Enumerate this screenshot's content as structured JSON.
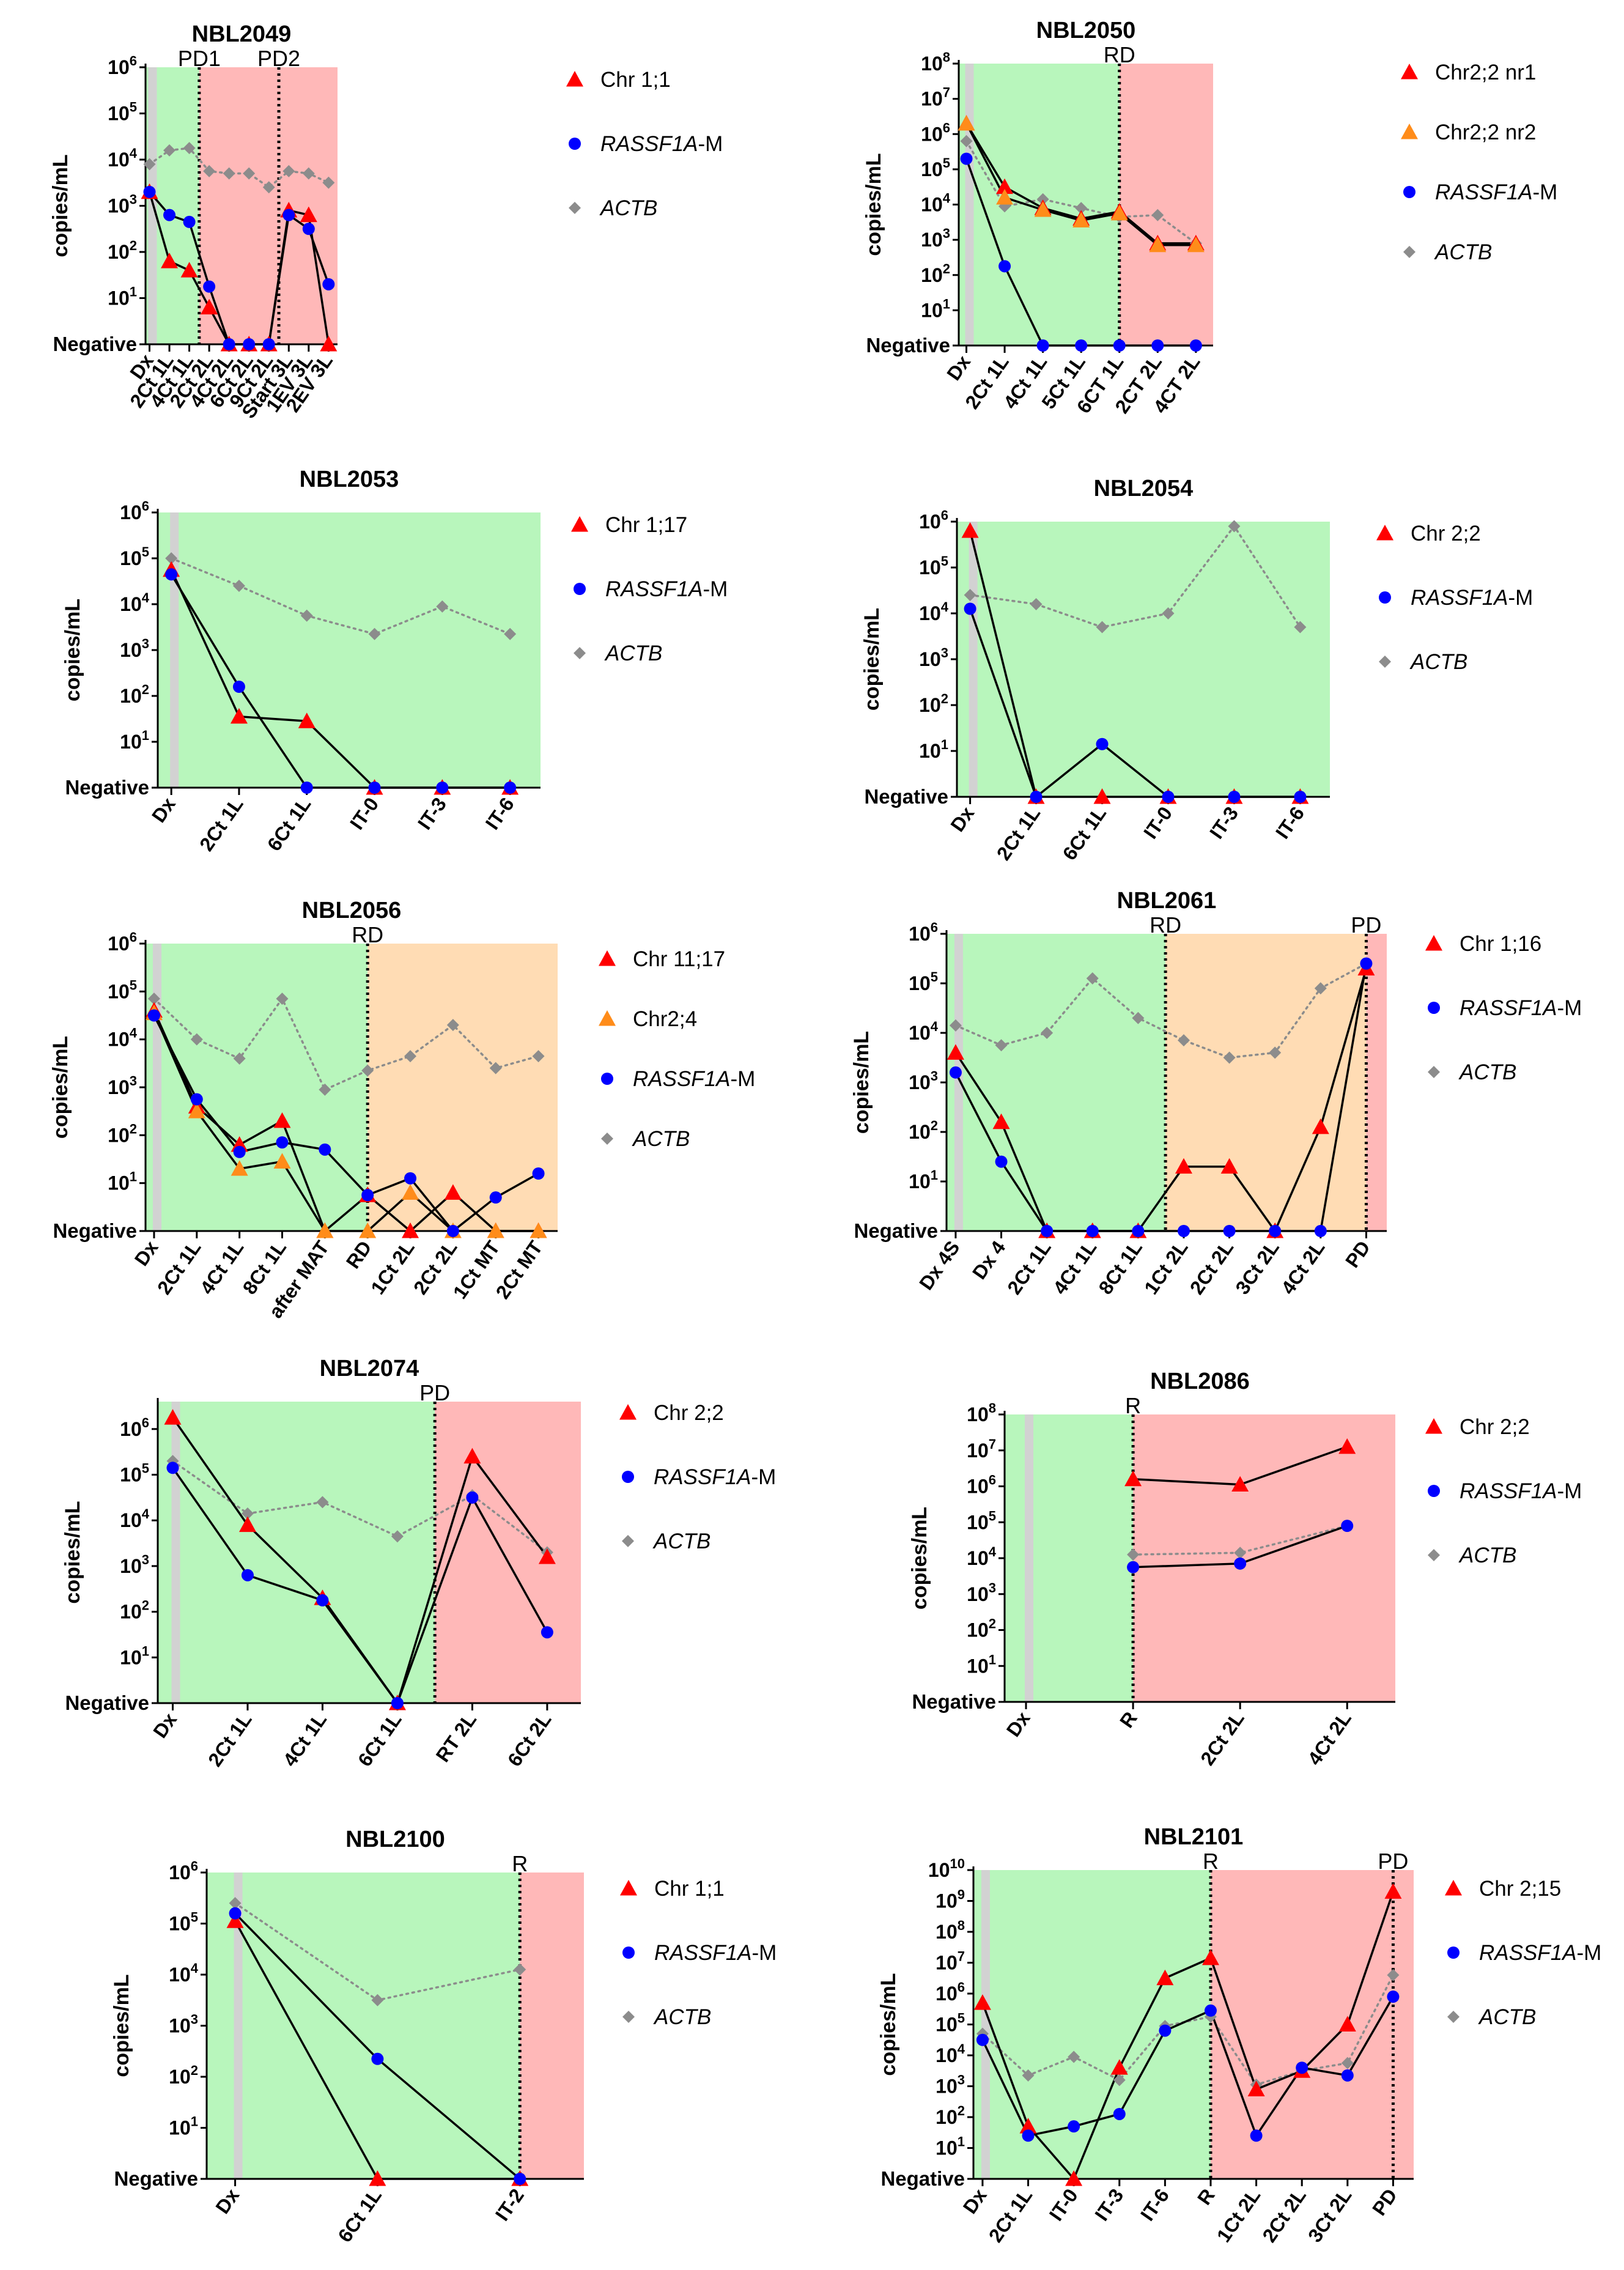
{
  "labels": {
    "negative": "Negative",
    "ylabel": "copies/mL"
  },
  "colors": {
    "green": "#b8f6bc",
    "red": "#ffb8b8",
    "orange": "#ffdcb4",
    "gray": "#d2d2d2",
    "red_series": "#ff0000",
    "orange_series": "#ff8c1a",
    "blue": "#0000ff",
    "actb": "#8c8c8c"
  },
  "chart_data": [
    {
      "type": "line",
      "title": "NBL2049",
      "xlabel": "",
      "ylabel": "copies/mL",
      "ylim_log10": [
        0,
        6
      ],
      "categories": [
        "Dx",
        "2Ct 1L",
        "4Ct 1L",
        "2Ct 2L",
        "4Ct 2L",
        "6Ct 2L",
        "9Ct 2L",
        "Start 3L",
        "1EV 3L",
        "2EV 3L"
      ],
      "shading": [
        {
          "from": -0.15,
          "to": 2.5,
          "color": "green"
        },
        {
          "from": 2.5,
          "to": 9.5,
          "color": "red"
        }
      ],
      "markers": [
        {
          "label": "PD1",
          "at": 2.5
        },
        {
          "label": "PD2",
          "at": 6.5
        }
      ],
      "series": [
        {
          "name": "Chr 1;1",
          "style": "red-triangle",
          "values_log10": [
            3.3,
            1.8,
            1.6,
            0.8,
            0,
            0,
            0,
            2.9,
            2.8,
            0
          ]
        },
        {
          "name": "RASSF1A-M",
          "style": "blue-circle",
          "values_log10": [
            3.3,
            2.8,
            2.65,
            1.25,
            0,
            0,
            0,
            2.8,
            2.5,
            1.3
          ]
        },
        {
          "name": "ACTB",
          "style": "gray-diamond",
          "values_log10": [
            3.9,
            4.2,
            4.25,
            3.75,
            3.7,
            3.7,
            3.4,
            3.75,
            3.7,
            3.5
          ]
        }
      ]
    },
    {
      "type": "line",
      "title": "NBL2050",
      "xlabel": "",
      "ylabel": "copies/mL",
      "ylim_log10": [
        0,
        8
      ],
      "categories": [
        "Dx",
        "2Ct 1L",
        "4Ct 1L",
        "5Ct 1L",
        "6CT 1L",
        "2CT 2L",
        "4CT 2L"
      ],
      "shading": [
        {
          "from": -0.15,
          "to": 4,
          "color": "green"
        },
        {
          "from": 4,
          "to": 6.5,
          "color": "red"
        }
      ],
      "markers": [
        {
          "label": "RD",
          "at": 4
        }
      ],
      "series": [
        {
          "name": "Chr2;2 nr1",
          "style": "red-triangle",
          "values_log10": [
            6.3,
            4.5,
            3.9,
            3.6,
            3.8,
            2.9,
            2.9
          ]
        },
        {
          "name": "Chr2;2 nr2",
          "style": "orange-triangle",
          "values_log10": [
            6.3,
            4.2,
            3.85,
            3.55,
            3.75,
            2.85,
            2.85
          ]
        },
        {
          "name": "RASSF1A-M",
          "style": "blue-circle",
          "values_log10": [
            5.3,
            2.25,
            0,
            0,
            0,
            0,
            0
          ]
        },
        {
          "name": "ACTB",
          "style": "gray-diamond",
          "values_log10": [
            5.8,
            3.95,
            4.15,
            3.9,
            3.65,
            3.7,
            2.9
          ]
        }
      ]
    },
    {
      "type": "line",
      "title": "NBL2053",
      "xlabel": "",
      "ylabel": "copies/mL",
      "ylim_log10": [
        0,
        6
      ],
      "categories": [
        "Dx",
        "2Ct 1L",
        "6Ct 1L",
        "IT-0",
        "IT-3",
        "IT-6"
      ],
      "shading": [
        {
          "from": -0.15,
          "to": 5.6,
          "color": "green"
        }
      ],
      "markers": [],
      "series": [
        {
          "name": "Chr 1;17",
          "style": "red-triangle",
          "values_log10": [
            4.75,
            1.55,
            1.45,
            0,
            0,
            0
          ]
        },
        {
          "name": "RASSF1A-M",
          "style": "blue-circle",
          "values_log10": [
            4.65,
            2.2,
            0,
            0,
            0,
            0
          ]
        },
        {
          "name": "ACTB",
          "style": "gray-diamond",
          "values_log10": [
            5.0,
            4.4,
            3.75,
            3.35,
            3.95,
            3.35
          ]
        }
      ]
    },
    {
      "type": "line",
      "title": "NBL2054",
      "xlabel": "",
      "ylabel": "copies/mL",
      "ylim_log10": [
        0,
        6
      ],
      "categories": [
        "Dx",
        "2Ct 1L",
        "6Ct 1L",
        "IT-0",
        "IT-3",
        "IT-6"
      ],
      "shading": [
        {
          "from": -0.15,
          "to": 5.6,
          "color": "green"
        }
      ],
      "markers": [],
      "series": [
        {
          "name": "Chr 2;2",
          "style": "red-triangle",
          "values_log10": [
            5.8,
            0,
            0,
            0,
            0,
            0
          ]
        },
        {
          "name": "RASSF1A-M",
          "style": "blue-circle",
          "values_log10": [
            4.1,
            0,
            1.15,
            0,
            0,
            0
          ]
        },
        {
          "name": "ACTB",
          "style": "gray-diamond",
          "values_log10": [
            4.4,
            4.2,
            3.7,
            4.0,
            5.9,
            3.7
          ]
        }
      ]
    },
    {
      "type": "line",
      "title": "NBL2056",
      "xlabel": "",
      "ylabel": "copies/mL",
      "ylim_log10": [
        0,
        6
      ],
      "categories": [
        "Dx",
        "2Ct 1L",
        "4Ct 1L",
        "8Ct 1L",
        "after MAT",
        "RD",
        "1Ct 2L",
        "2Ct 2L",
        "1Ct MT",
        "2Ct MT"
      ],
      "shading": [
        {
          "from": -0.15,
          "to": 5,
          "color": "green"
        },
        {
          "from": 5,
          "to": 9.6,
          "color": "orange"
        }
      ],
      "markers": [
        {
          "label": "RD",
          "at": 5
        }
      ],
      "series": [
        {
          "name": "Chr 11;17",
          "style": "red-triangle",
          "values_log10": [
            4.6,
            2.6,
            1.8,
            2.3,
            0,
            0.75,
            0,
            0.8,
            0,
            0
          ]
        },
        {
          "name": "Chr2;4",
          "style": "orange-triangle",
          "values_log10": [
            4.55,
            2.5,
            1.3,
            1.45,
            0,
            0,
            0.8,
            0,
            0,
            0
          ]
        },
        {
          "name": "RASSF1A-M",
          "style": "blue-circle",
          "values_log10": [
            4.5,
            2.75,
            1.65,
            1.85,
            1.7,
            0.75,
            1.1,
            0,
            0.7,
            1.2
          ]
        },
        {
          "name": "ACTB",
          "style": "gray-diamond",
          "values_log10": [
            4.85,
            4.0,
            3.6,
            4.85,
            2.95,
            3.35,
            3.65,
            4.3,
            3.4,
            3.65
          ]
        }
      ]
    },
    {
      "type": "line",
      "title": "NBL2061",
      "xlabel": "",
      "ylabel": "copies/mL",
      "ylim_log10": [
        0,
        6
      ],
      "categories": [
        "Dx 4S",
        "Dx 4",
        "2Ct 1L",
        "4Ct 1L",
        "8Ct 1L",
        "1Ct 2L",
        "2Ct 2L",
        "3Ct 2L",
        "4Ct 2L",
        "PD"
      ],
      "shading": [
        {
          "from": -0.15,
          "to": 4.6,
          "color": "green"
        },
        {
          "from": 4.6,
          "to": 9,
          "color": "orange"
        },
        {
          "from": 9,
          "to": 9.6,
          "color": "red"
        }
      ],
      "markers": [
        {
          "label": "RD",
          "at": 4.6
        },
        {
          "label": "PD",
          "at": 9
        }
      ],
      "series": [
        {
          "name": "Chr 1;16",
          "style": "red-triangle",
          "values_log10": [
            3.6,
            2.2,
            0,
            0,
            0,
            1.3,
            1.3,
            0,
            2.1,
            5.3
          ]
        },
        {
          "name": "RASSF1A-M",
          "style": "blue-circle",
          "values_log10": [
            3.2,
            1.4,
            0,
            0,
            0,
            0,
            0,
            0,
            0,
            5.4
          ]
        },
        {
          "name": "ACTB",
          "style": "gray-diamond",
          "values_log10": [
            4.15,
            3.75,
            4.0,
            5.1,
            4.3,
            3.85,
            3.5,
            3.6,
            4.9,
            5.4
          ]
        }
      ]
    },
    {
      "type": "line",
      "title": "NBL2074",
      "xlabel": "",
      "ylabel": "copies/mL",
      "ylim_log10": [
        0,
        6.6
      ],
      "categories": [
        "Dx",
        "2Ct 1L",
        "4Ct 1L",
        "6Ct 1L",
        "RT 2L",
        "6Ct 2L"
      ],
      "shading": [
        {
          "from": -0.15,
          "to": 3.5,
          "color": "green"
        },
        {
          "from": 3.5,
          "to": 5.7,
          "color": "red"
        }
      ],
      "markers": [
        {
          "label": "PD",
          "at": 3.5
        }
      ],
      "series": [
        {
          "name": "Chr 2;2",
          "style": "red-triangle",
          "values_log10": [
            6.25,
            3.9,
            2.3,
            0,
            5.4,
            3.2
          ]
        },
        {
          "name": "RASSF1A-M",
          "style": "blue-circle",
          "values_log10": [
            5.15,
            2.8,
            2.25,
            0,
            4.5,
            1.55
          ]
        },
        {
          "name": "ACTB",
          "style": "gray-diamond",
          "values_log10": [
            5.3,
            4.15,
            4.4,
            3.65,
            4.55,
            3.3
          ]
        }
      ]
    },
    {
      "type": "line",
      "title": "NBL2086",
      "xlabel": "",
      "ylabel": "copies/mL",
      "ylim_log10": [
        0,
        8
      ],
      "categories": [
        "Dx",
        "R",
        "2Ct 2L",
        "4Ct 2L"
      ],
      "shading": [
        {
          "from": -0.15,
          "to": 1,
          "color": "green"
        },
        {
          "from": 1,
          "to": 3.7,
          "color": "red"
        }
      ],
      "markers": [
        {
          "label": "R",
          "at": 1
        }
      ],
      "series": [
        {
          "name": "Chr 2;2",
          "style": "red-triangle",
          "values_log10": [
            null,
            6.2,
            6.05,
            7.1
          ]
        },
        {
          "name": "RASSF1A-M",
          "style": "blue-circle",
          "values_log10": [
            null,
            3.75,
            3.85,
            4.9
          ]
        },
        {
          "name": "ACTB",
          "style": "gray-diamond",
          "values_log10": [
            null,
            4.1,
            4.15,
            4.9
          ]
        }
      ]
    },
    {
      "type": "line",
      "title": "NBL2100",
      "xlabel": "",
      "ylabel": "copies/mL",
      "ylim_log10": [
        0,
        6
      ],
      "categories": [
        "Dx",
        "6Ct 1L",
        "IT-2"
      ],
      "shading": [
        {
          "from": -0.05,
          "to": 2,
          "color": "green"
        },
        {
          "from": 2,
          "to": 2.5,
          "color": "red"
        }
      ],
      "markers": [
        {
          "label": "R",
          "at": 2
        }
      ],
      "series": [
        {
          "name": "Chr 1;1",
          "style": "red-triangle",
          "values_log10": [
            5.05,
            0,
            0
          ]
        },
        {
          "name": "RASSF1A-M",
          "style": "blue-circle",
          "values_log10": [
            5.2,
            2.35,
            0
          ]
        },
        {
          "name": "ACTB",
          "style": "gray-diamond",
          "values_log10": [
            5.4,
            3.5,
            4.1
          ]
        }
      ]
    },
    {
      "type": "line",
      "title": "NBL2101",
      "xlabel": "",
      "ylabel": "copies/mL",
      "ylim_log10": [
        0,
        10
      ],
      "categories": [
        "Dx",
        "2Ct 1L",
        "IT-0",
        "IT-3",
        "IT-6",
        "R",
        "1Ct 2L",
        "2Ct 2L",
        "3Ct 2L",
        "PD"
      ],
      "shading": [
        {
          "from": -0.15,
          "to": 5,
          "color": "green"
        },
        {
          "from": 5,
          "to": 9.8,
          "color": "red"
        }
      ],
      "markers": [
        {
          "label": "R",
          "at": 5
        },
        {
          "label": "PD",
          "at": 9
        }
      ],
      "series": [
        {
          "name": "Chr 2;15",
          "style": "red-triangle",
          "values_log10": [
            5.7,
            1.7,
            0,
            3.6,
            6.5,
            7.15,
            2.9,
            3.5,
            5.0,
            9.3
          ]
        },
        {
          "name": "RASSF1A-M",
          "style": "blue-circle",
          "values_log10": [
            4.5,
            1.4,
            1.7,
            2.1,
            4.8,
            5.45,
            1.4,
            3.6,
            3.35,
            5.9
          ]
        },
        {
          "name": "ACTB",
          "style": "gray-diamond",
          "values_log10": [
            4.7,
            3.35,
            3.95,
            3.2,
            4.95,
            5.25,
            3.05,
            3.5,
            3.75,
            6.6
          ]
        }
      ]
    }
  ]
}
